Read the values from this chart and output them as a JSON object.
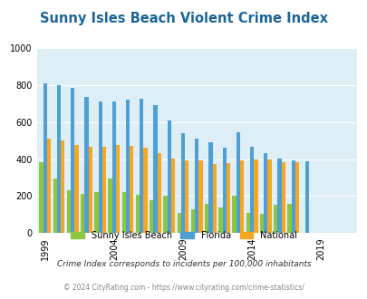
{
  "title": "Sunny Isles Beach Violent Crime Index",
  "title_color": "#1a6699",
  "years": [
    1999,
    2000,
    2001,
    2002,
    2003,
    2004,
    2005,
    2006,
    2007,
    2008,
    2009,
    2010,
    2011,
    2012,
    2013,
    2014,
    2015,
    2016,
    2017,
    2018,
    2019,
    2020,
    2021
  ],
  "sunny_isles": [
    385,
    295,
    230,
    210,
    220,
    295,
    220,
    205,
    180,
    200,
    110,
    130,
    160,
    140,
    200,
    110,
    105,
    155,
    160,
    0,
    0,
    0,
    0
  ],
  "florida": [
    810,
    800,
    785,
    735,
    710,
    710,
    720,
    725,
    690,
    610,
    540,
    510,
    490,
    460,
    545,
    465,
    430,
    405,
    395,
    390,
    0,
    0,
    0
  ],
  "national": [
    510,
    500,
    475,
    465,
    465,
    475,
    470,
    460,
    430,
    405,
    395,
    395,
    375,
    380,
    395,
    400,
    400,
    385,
    385,
    0,
    0,
    0,
    0
  ],
  "color_green": "#8dc63f",
  "color_blue": "#4d9fd6",
  "color_orange": "#f5a623",
  "bg_color": "#ddeef6",
  "ylim": [
    0,
    1000
  ],
  "yticks": [
    0,
    200,
    400,
    600,
    800,
    1000
  ],
  "x_tick_years": [
    1999,
    2004,
    2009,
    2014,
    2019
  ],
  "xlabel": "",
  "ylabel": "",
  "legend_labels": [
    "Sunny Isles Beach",
    "Florida",
    "National"
  ],
  "footnote1": "Crime Index corresponds to incidents per 100,000 inhabitants",
  "footnote2": "© 2024 CityRating.com - https://www.cityrating.com/crime-statistics/",
  "footnote_color1": "#333333",
  "footnote_color2": "#888888"
}
